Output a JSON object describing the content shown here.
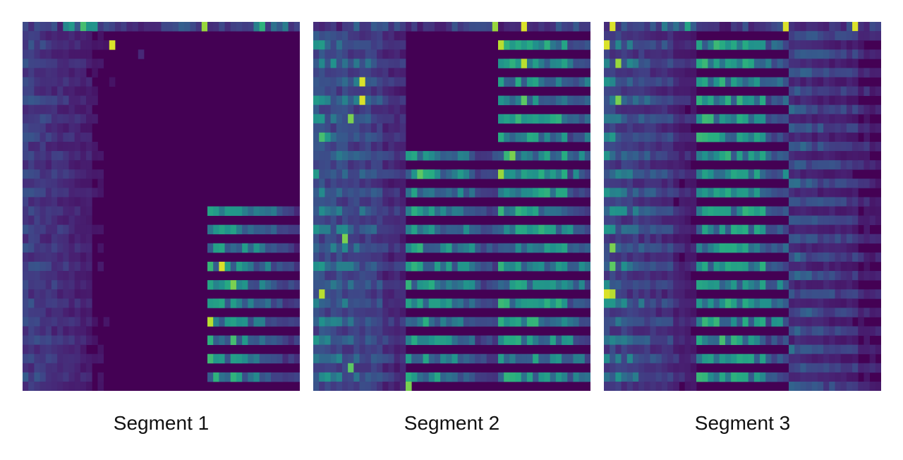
{
  "figure": {
    "colormap": "viridis",
    "background_color": "#440154",
    "rows": 40,
    "columns_per_block": 16,
    "blocks_per_segment": 3
  },
  "chart_data": {
    "type": "heatmap",
    "colormap": "viridis",
    "value_range": [
      0,
      1
    ],
    "segments": [
      {
        "name": "Segment 1",
        "blocks": [
          {
            "top": 0.45,
            "band": "even",
            "even": 0.3,
            "odd": 0.22,
            "decay": 0.05,
            "span": [
              0,
              39
            ],
            "peaks": [
              [
                2,
                15,
                0.95
              ],
              [
                0,
                10,
                0.7
              ]
            ]
          },
          {
            "top": 0.35,
            "band": "none",
            "even": 0.03,
            "odd": 0.03,
            "decay": 0.0,
            "span": [
              0,
              3
            ],
            "peaks": [
              [
                0,
                15,
                0.85
              ],
              [
                3,
                4,
                0.15
              ]
            ]
          },
          {
            "top": 0.4,
            "band": "even",
            "even": 0.55,
            "odd": 0.02,
            "decay": 0.03,
            "span": [
              20,
              39
            ],
            "peaks": [
              [
                0,
                9,
                0.65
              ],
              [
                26,
                2,
                0.95
              ],
              [
                28,
                4,
                0.8
              ],
              [
                32,
                0,
                0.9
              ],
              [
                34,
                4,
                0.7
              ],
              [
                38,
                4,
                0.65
              ],
              [
                30,
                2,
                0.6
              ]
            ]
          }
        ]
      },
      {
        "name": "Segment 2",
        "blocks": [
          {
            "top": 0.35,
            "band": "all",
            "even": 0.45,
            "odd": 0.3,
            "decay": 0.025,
            "span": [
              0,
              39
            ],
            "peaks": [
              [
                6,
                8,
                0.95
              ],
              [
                8,
                8,
                0.95
              ],
              [
                10,
                6,
                0.8
              ],
              [
                12,
                1,
                0.7
              ],
              [
                23,
                5,
                0.8
              ],
              [
                29,
                1,
                0.9
              ],
              [
                37,
                6,
                0.75
              ]
            ]
          },
          {
            "top": 0.35,
            "band": "even",
            "even": 0.55,
            "odd": 0.02,
            "decay": 0.02,
            "span": [
              14,
              39
            ],
            "peaks": [
              [
                16,
                2,
                0.75
              ],
              [
                39,
                0,
                0.8
              ],
              [
                0,
                15,
                0.85
              ]
            ]
          },
          {
            "top": 0.3,
            "band": "even",
            "even": 0.55,
            "odd": 0.03,
            "decay": 0.005,
            "span": [
              0,
              39
            ],
            "peaks": [
              [
                0,
                4,
                0.95
              ],
              [
                2,
                0,
                0.9
              ],
              [
                4,
                4,
                0.9
              ],
              [
                8,
                4,
                0.75
              ],
              [
                14,
                2,
                0.8
              ],
              [
                16,
                0,
                0.85
              ]
            ]
          }
        ]
      },
      {
        "name": "Segment 3",
        "blocks": [
          {
            "top": 0.5,
            "band": "all",
            "even": 0.45,
            "odd": 0.25,
            "decay": 0.035,
            "span": [
              0,
              39
            ],
            "peaks": [
              [
                0,
                1,
                0.95
              ],
              [
                2,
                0,
                0.95
              ],
              [
                4,
                2,
                0.85
              ],
              [
                8,
                2,
                0.8
              ],
              [
                24,
                1,
                0.8
              ],
              [
                26,
                1,
                0.75
              ],
              [
                29,
                0,
                0.95
              ],
              [
                29,
                1,
                0.9
              ]
            ]
          },
          {
            "top": 0.3,
            "band": "even",
            "even": 0.55,
            "odd": 0.03,
            "decay": 0.005,
            "span": [
              0,
              39
            ],
            "peaks": [
              [
                0,
                15,
                0.95
              ],
              [
                34,
                4,
                0.7
              ]
            ]
          },
          {
            "top": 0.3,
            "band": "odd",
            "even": 0.15,
            "odd": 0.35,
            "decay": 0.03,
            "span": [
              0,
              39
            ],
            "peaks": [
              [
                0,
                11,
                0.95
              ],
              [
                33,
                1,
                0.4
              ]
            ]
          }
        ]
      }
    ]
  }
}
